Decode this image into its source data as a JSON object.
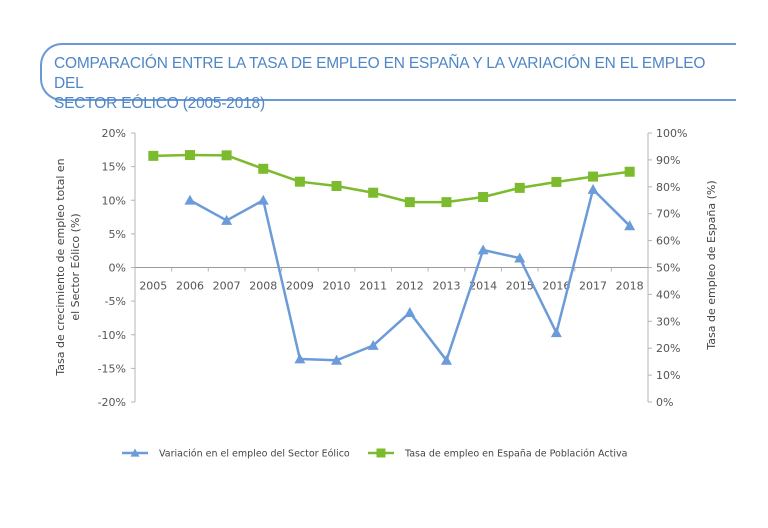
{
  "header": {
    "title_line1": "COMPARACIÓN ENTRE LA TASA DE EMPLEO EN ESPAÑA Y LA VARIACIÓN EN EL EMPLEO DEL",
    "title_line2": "SECTOR EÓLICO (2005-2018)"
  },
  "chart_data": {
    "type": "line",
    "title": "COMPARACIÓN ENTRE LA TASA DE EMPLEO EN ESPAÑA Y LA VARIACIÓN EN EL EMPLEO DEL SECTOR EÓLICO (2005-2018)",
    "categories": [
      "2005",
      "2006",
      "2007",
      "2008",
      "2009",
      "2010",
      "2011",
      "2012",
      "2013",
      "2014",
      "2015",
      "2016",
      "2017",
      "2018"
    ],
    "ylabel": "Tasa  de crecimiento de empleo total en el Sector Eólico (%)",
    "ylabel_lines": [
      "Tasa  de crecimiento de empleo total en",
      "el Sector Eólico (%)"
    ],
    "y2label": "Tasa de empleo de España (%)",
    "ylim": [
      -20,
      20
    ],
    "y2lim": [
      0,
      100
    ],
    "yticks": [
      "20%",
      "15%",
      "10%",
      "5%",
      "0%",
      "-5%",
      "-10%",
      "-15%",
      "-20%"
    ],
    "y2ticks": [
      "100%",
      "90%",
      "80%",
      "70%",
      "60%",
      "50%",
      "40%",
      "30%",
      "20%",
      "10%",
      "0%"
    ],
    "grid": false,
    "legend_position": "bottom",
    "series": [
      {
        "name": "Variación en el empleo del Sector Eólico",
        "axis": "left",
        "color": "#6b9bd8",
        "marker": "triangle",
        "values": [
          null,
          10,
          7,
          10,
          -13.6,
          -13.8,
          -11.6,
          -6.7,
          -13.8,
          2.6,
          1.4,
          -9.7,
          11.6,
          6.2
        ]
      },
      {
        "name": "Tasa de empleo en España de Población Activa",
        "axis": "right",
        "color": "#7cbb2e",
        "marker": "square",
        "values": [
          91.5,
          91.8,
          91.7,
          86.7,
          81.9,
          80.3,
          77.8,
          74.3,
          74.3,
          76.2,
          79.6,
          81.8,
          83.8,
          85.6
        ]
      }
    ]
  }
}
